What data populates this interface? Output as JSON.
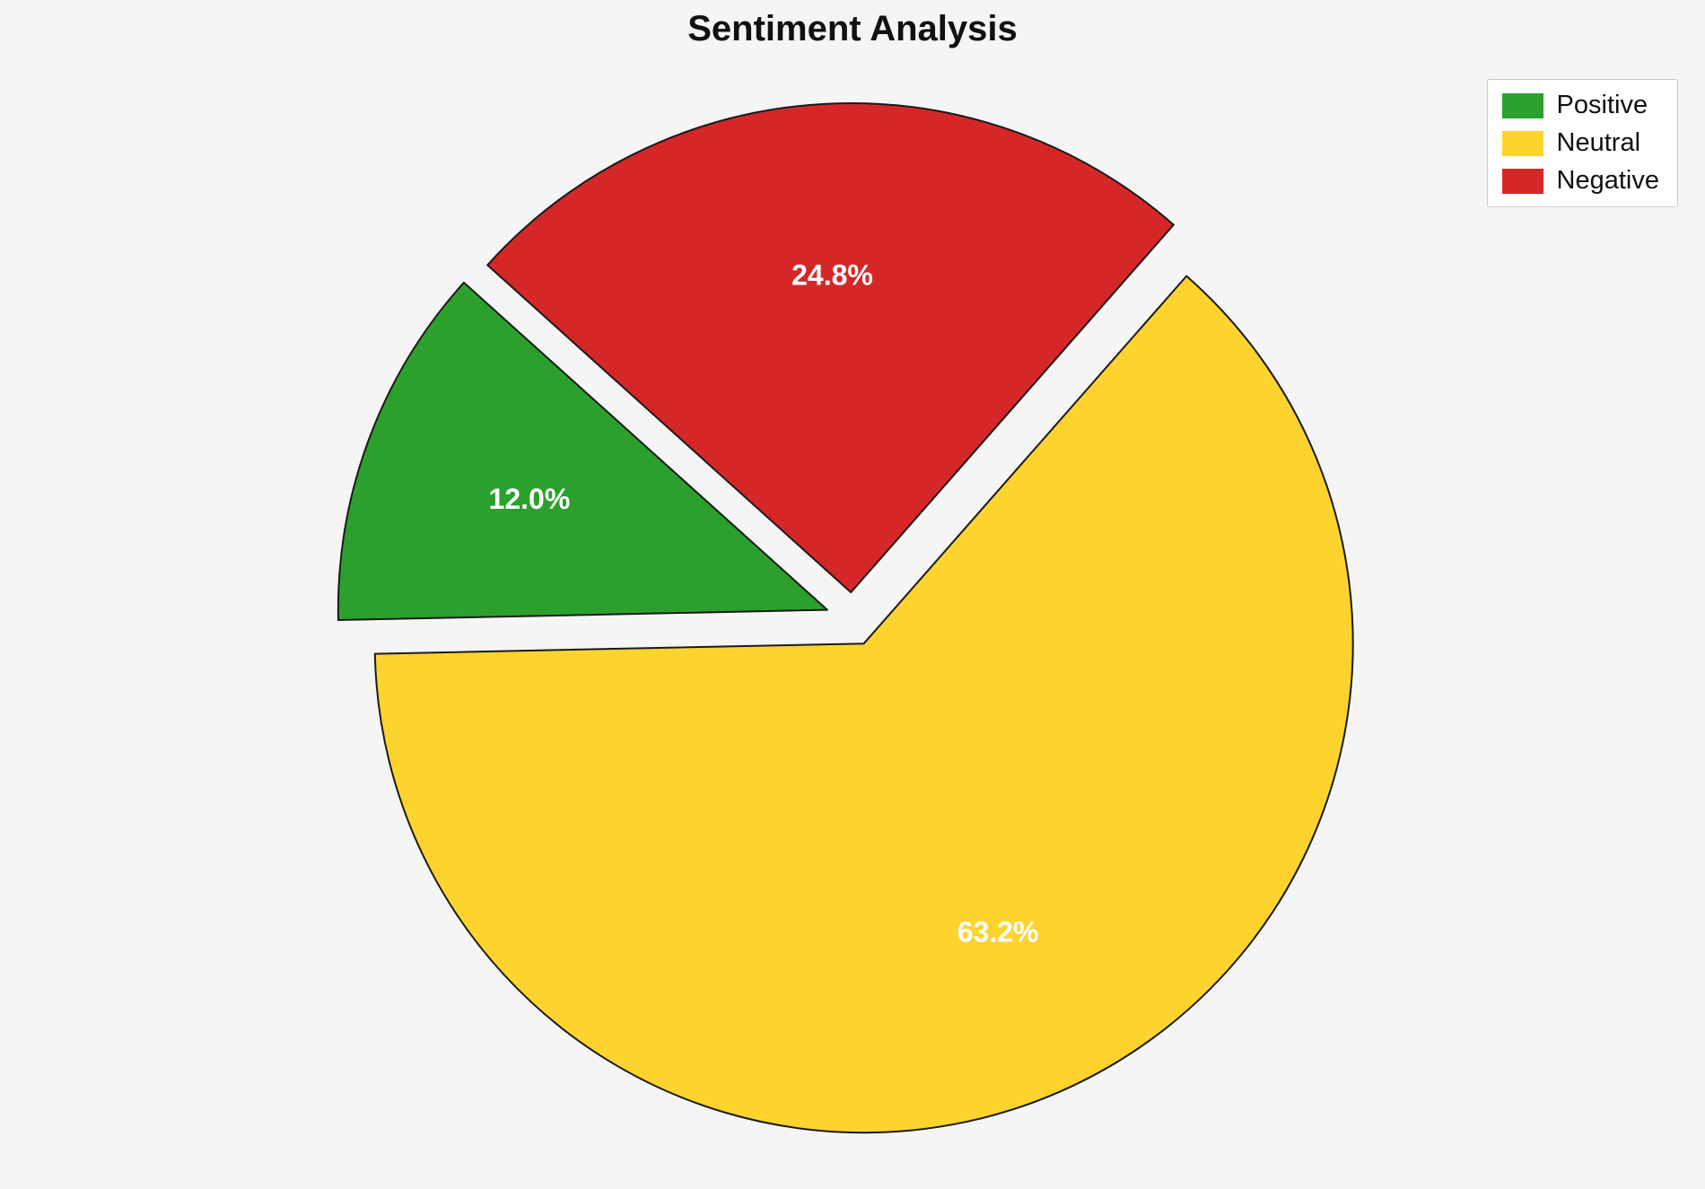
{
  "chart_data": {
    "type": "pie",
    "title": "Sentiment Analysis",
    "labels": [
      "Positive",
      "Neutral",
      "Negative"
    ],
    "values": [
      12.0,
      63.2,
      24.8
    ],
    "value_labels": [
      "12.0%",
      "63.2%",
      "24.8%"
    ],
    "colors": [
      "#2ca02c",
      "#fdd32e",
      "#d62728"
    ],
    "background": "#f5f5f5",
    "wedge_edge_color": "#1a1a1a",
    "start_angle": 138,
    "direction": "counterclockwise",
    "explode": 0.055,
    "pct_distance": 0.65,
    "legend_position": "upper right",
    "legend_entries": [
      "Positive",
      "Neutral",
      "Negative"
    ]
  }
}
